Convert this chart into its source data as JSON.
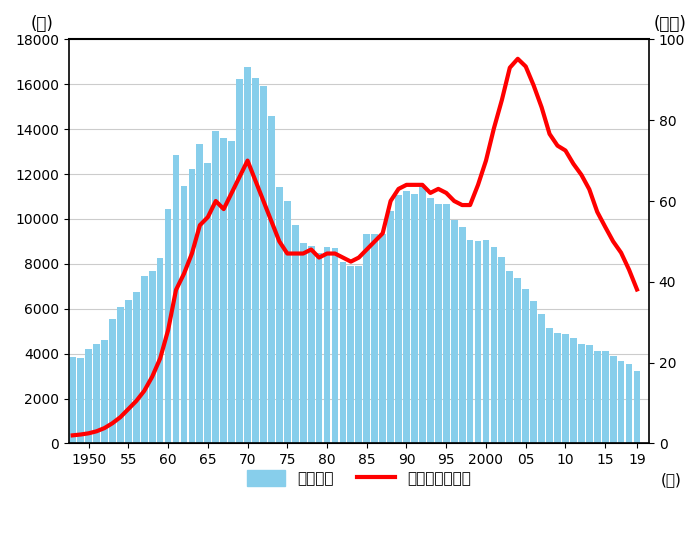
{
  "years": [
    1948,
    1949,
    1950,
    1951,
    1952,
    1953,
    1954,
    1955,
    1956,
    1957,
    1958,
    1959,
    1960,
    1961,
    1962,
    1963,
    1964,
    1965,
    1966,
    1967,
    1968,
    1969,
    1970,
    1971,
    1972,
    1973,
    1974,
    1975,
    1976,
    1977,
    1978,
    1979,
    1980,
    1981,
    1982,
    1983,
    1984,
    1985,
    1986,
    1987,
    1988,
    1989,
    1990,
    1991,
    1992,
    1993,
    1994,
    1995,
    1996,
    1997,
    1998,
    1999,
    2000,
    2001,
    2002,
    2003,
    2004,
    2005,
    2006,
    2007,
    2008,
    2009,
    2010,
    2011,
    2012,
    2013,
    2014,
    2015,
    2016,
    2017,
    2018,
    2019
  ],
  "deaths": [
    3848,
    3790,
    4202,
    4429,
    4609,
    5544,
    6099,
    6379,
    6744,
    7438,
    7690,
    8248,
    10466,
    12865,
    11451,
    12240,
    13318,
    12484,
    13904,
    13618,
    13470,
    16257,
    16765,
    16278,
    15918,
    14574,
    11432,
    10792,
    9734,
    8945,
    8783,
    8466,
    8760,
    8719,
    8100,
    7892,
    7924,
    9317,
    9317,
    9347,
    10344,
    11086,
    11227,
    11105,
    11451,
    10945,
    10679,
    10684,
    9942,
    9640,
    9066,
    9006,
    9073,
    8747,
    8326,
    7702,
    7358,
    6871,
    6352,
    5744,
    5155,
    4914,
    4863,
    4691,
    4411,
    4373,
    4113,
    4117,
    3904,
    3694,
    3532,
    3215
  ],
  "accidents": [
    2.0,
    2.2,
    2.5,
    3.0,
    3.8,
    5.0,
    6.5,
    8.5,
    10.5,
    13.0,
    16.5,
    21.0,
    28.0,
    38.0,
    42.0,
    47.0,
    54.0,
    56.0,
    60.0,
    58.0,
    62.0,
    66.0,
    70.0,
    65.0,
    60.0,
    55.0,
    50.0,
    47.0,
    47.0,
    47.0,
    48.0,
    46.0,
    47.0,
    47.0,
    46.0,
    45.0,
    46.0,
    48.0,
    50.0,
    52.0,
    60.0,
    63.0,
    64.0,
    64.0,
    64.0,
    62.0,
    63.0,
    62.0,
    60.0,
    59.0,
    59.0,
    64.0,
    70.0,
    78.0,
    85.0,
    93.0,
    95.2,
    93.3,
    88.6,
    83.2,
    76.6,
    73.7,
    72.5,
    69.2,
    66.5,
    62.9,
    57.3,
    53.6,
    50.0,
    47.2,
    43.0,
    38.1
  ],
  "bar_color": "#87CEEB",
  "line_color": "#FF0000",
  "bg_color": "#ffffff",
  "left_ylabel": "(人)",
  "right_ylabel": "(万件)",
  "xlabel": "(年)",
  "left_ylim": [
    0,
    18000
  ],
  "right_ylim": [
    0,
    100
  ],
  "left_yticks": [
    0,
    2000,
    4000,
    6000,
    8000,
    10000,
    12000,
    14000,
    16000,
    18000
  ],
  "right_yticks": [
    0,
    20,
    40,
    60,
    80,
    100
  ],
  "xtick_labels": [
    "1950",
    "55",
    "60",
    "65",
    "70",
    "75",
    "80",
    "85",
    "90",
    "95",
    "2000",
    "05",
    "10",
    "15",
    "19"
  ],
  "xtick_positions": [
    1950,
    1955,
    1960,
    1965,
    1970,
    1975,
    1980,
    1985,
    1990,
    1995,
    2000,
    2005,
    2010,
    2015,
    2019
  ],
  "legend_bar_label": "死亡者数",
  "legend_line_label": "自動車事故件数",
  "grid_color": "#cccccc",
  "line_width": 3.0
}
